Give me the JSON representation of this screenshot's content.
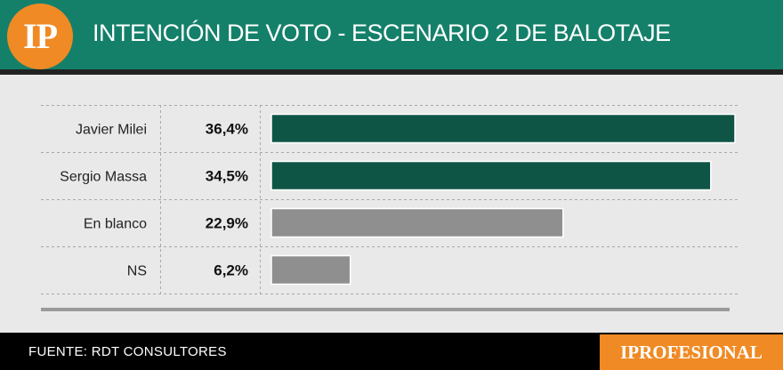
{
  "header": {
    "logo_text": "IP",
    "title": "INTENCIÓN DE VOTO - ESCENARIO 2 DE BALOTAJE"
  },
  "chart_data": {
    "type": "bar",
    "orientation": "horizontal",
    "categories": [
      "Javier Milei",
      "Sergio Massa",
      "En blanco",
      "NS"
    ],
    "values": [
      36.4,
      34.5,
      22.9,
      6.2
    ],
    "value_labels": [
      "36,4%",
      "34,5%",
      "22,9%",
      "6,2%"
    ],
    "bar_colors": [
      "#0f5546",
      "#0f5546",
      "#8f8f8f",
      "#8f8f8f"
    ],
    "xlim": [
      0,
      36.4
    ],
    "grid": false
  },
  "footer": {
    "source": "FUENTE: RDT CONSULTORES",
    "brand": "IPROFESIONAL"
  },
  "colors": {
    "header_bg": "#15806a",
    "accent": "#f08a24",
    "candidate_bar": "#0f5546",
    "other_bar": "#8f8f8f"
  }
}
